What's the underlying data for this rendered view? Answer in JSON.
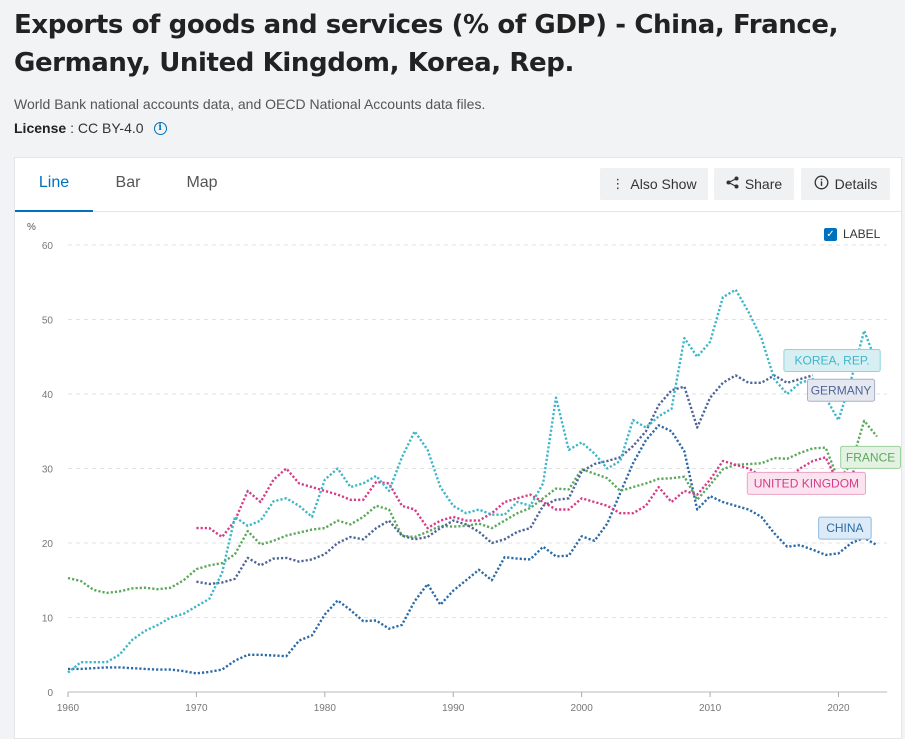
{
  "header": {
    "title": "Exports of goods and services (% of GDP) - China, France, Germany, United Kingdom, Korea, Rep.",
    "source": "World Bank national accounts data, and OECD National Accounts data files.",
    "license_label": "License",
    "license_value": ": CC BY-4.0"
  },
  "tabs": [
    {
      "label": "Line",
      "active": true
    },
    {
      "label": "Bar",
      "active": false
    },
    {
      "label": "Map",
      "active": false
    }
  ],
  "actions": {
    "also_show": "Also Show",
    "share": "Share",
    "details": "Details"
  },
  "label_toggle": {
    "label": "LABEL",
    "checked": true
  },
  "chart_data": {
    "type": "line",
    "y_unit": "%",
    "xlim": [
      1960,
      2023
    ],
    "ylim": [
      0,
      60
    ],
    "x_ticks": [
      1960,
      1970,
      1980,
      1990,
      2000,
      2010,
      2020
    ],
    "y_ticks": [
      0,
      10,
      20,
      30,
      40,
      50,
      60
    ],
    "grid": true,
    "series": [
      {
        "name": "CHINA",
        "color": "#2c6ba6",
        "label_bg": "#dcebf7",
        "label_border": "#8cbbe0",
        "x": [
          1960,
          1961,
          1962,
          1963,
          1964,
          1965,
          1966,
          1967,
          1968,
          1969,
          1970,
          1971,
          1972,
          1973,
          1974,
          1975,
          1976,
          1977,
          1978,
          1979,
          1980,
          1981,
          1982,
          1983,
          1984,
          1985,
          1986,
          1987,
          1988,
          1989,
          1990,
          1991,
          1992,
          1993,
          1994,
          1995,
          1996,
          1997,
          1998,
          1999,
          2000,
          2001,
          2002,
          2003,
          2004,
          2005,
          2006,
          2007,
          2008,
          2009,
          2010,
          2011,
          2012,
          2013,
          2014,
          2015,
          2016,
          2017,
          2018,
          2019,
          2020,
          2021,
          2022,
          2023
        ],
        "y": [
          3.1,
          3.1,
          3.2,
          3.3,
          3.3,
          3.2,
          3.1,
          3.0,
          3.0,
          2.8,
          2.5,
          2.7,
          3.0,
          4.2,
          5.0,
          5.0,
          4.9,
          4.8,
          6.9,
          7.6,
          10.4,
          12.3,
          11.0,
          9.5,
          9.6,
          8.5,
          9.0,
          12.2,
          14.5,
          11.7,
          13.6,
          15.0,
          16.4,
          15.0,
          18.1,
          17.9,
          17.8,
          19.5,
          18.2,
          18.3,
          20.9,
          20.3,
          22.6,
          26.7,
          30.7,
          33.8,
          35.8,
          35.0,
          32.3,
          24.5,
          26.3,
          25.5,
          25.0,
          24.5,
          23.5,
          21.3,
          19.5,
          19.7,
          19.1,
          18.4,
          18.6,
          20.0,
          20.7,
          19.7
        ],
        "label_x": 2020.5,
        "label_y": 22.0
      },
      {
        "name": "FRANCE",
        "color": "#5ca85c",
        "label_bg": "#e4f2e4",
        "label_border": "#9ccf9c",
        "x": [
          1960,
          1961,
          1962,
          1963,
          1964,
          1965,
          1966,
          1967,
          1968,
          1969,
          1970,
          1971,
          1972,
          1973,
          1974,
          1975,
          1976,
          1977,
          1978,
          1979,
          1980,
          1981,
          1982,
          1983,
          1984,
          1985,
          1986,
          1987,
          1988,
          1989,
          1990,
          1991,
          1992,
          1993,
          1994,
          1995,
          1996,
          1997,
          1998,
          1999,
          2000,
          2001,
          2002,
          2003,
          2004,
          2005,
          2006,
          2007,
          2008,
          2009,
          2010,
          2011,
          2012,
          2013,
          2014,
          2015,
          2016,
          2017,
          2018,
          2019,
          2020,
          2021,
          2022,
          2023
        ],
        "y": [
          15.3,
          14.9,
          13.7,
          13.3,
          13.5,
          13.9,
          14.0,
          13.8,
          14.0,
          15.0,
          16.5,
          17.0,
          17.3,
          18.5,
          21.6,
          19.8,
          20.3,
          21.0,
          21.4,
          21.8,
          22.0,
          23.0,
          22.5,
          23.5,
          25.0,
          24.5,
          21.0,
          20.8,
          21.5,
          22.3,
          22.2,
          22.3,
          22.6,
          22.0,
          23.0,
          24.0,
          24.7,
          26.0,
          27.3,
          27.2,
          29.9,
          29.3,
          28.7,
          27.0,
          27.5,
          28.0,
          28.6,
          28.7,
          28.9,
          25.8,
          27.8,
          29.9,
          30.5,
          30.6,
          30.7,
          31.4,
          31.3,
          32.1,
          32.7,
          32.8,
          28.5,
          30.6,
          36.4,
          34.3
        ],
        "label_x": 2022.5,
        "label_y": 31.5
      },
      {
        "name": "GERMANY",
        "color": "#4e6596",
        "label_bg": "#e6e8f0",
        "label_border": "#a8b0cc",
        "x": [
          1970,
          1971,
          1972,
          1973,
          1974,
          1975,
          1976,
          1977,
          1978,
          1979,
          1980,
          1981,
          1982,
          1983,
          1984,
          1985,
          1986,
          1987,
          1988,
          1989,
          1990,
          1991,
          1992,
          1993,
          1994,
          1995,
          1996,
          1997,
          1998,
          1999,
          2000,
          2001,
          2002,
          2003,
          2004,
          2005,
          2006,
          2007,
          2008,
          2009,
          2010,
          2011,
          2012,
          2013,
          2014,
          2015,
          2016,
          2017,
          2018
        ],
        "y": [
          14.8,
          14.5,
          14.7,
          15.2,
          18.0,
          17.0,
          17.9,
          18.0,
          17.5,
          17.8,
          18.5,
          20.0,
          20.8,
          20.5,
          22.0,
          23.0,
          21.0,
          20.5,
          20.8,
          22.0,
          23.0,
          22.5,
          21.5,
          20.0,
          20.5,
          21.5,
          22.0,
          25.0,
          25.8,
          26.0,
          29.6,
          30.6,
          31.0,
          31.5,
          33.0,
          35.0,
          38.5,
          40.5,
          41.0,
          35.5,
          39.5,
          41.5,
          42.5,
          41.5,
          41.5,
          42.5,
          41.5,
          42.0,
          42.5
        ],
        "label_x": 2020.2,
        "label_y": 40.5
      },
      {
        "name": "UNITED KINGDOM",
        "color": "#d43d8a",
        "label_bg": "#fbe3ef",
        "label_border": "#eaa3c6",
        "x": [
          1970,
          1971,
          1972,
          1973,
          1974,
          1975,
          1976,
          1977,
          1978,
          1979,
          1980,
          1981,
          1982,
          1983,
          1984,
          1985,
          1986,
          1987,
          1988,
          1989,
          1990,
          1991,
          1992,
          1993,
          1994,
          1995,
          1996,
          1997,
          1998,
          1999,
          2000,
          2001,
          2002,
          2003,
          2004,
          2005,
          2006,
          2007,
          2008,
          2009,
          2010,
          2011,
          2012,
          2013,
          2014,
          2015,
          2016,
          2017,
          2018,
          2019,
          2020,
          2021,
          2022,
          2023
        ],
        "y": [
          22.0,
          22.0,
          20.8,
          23.0,
          27.0,
          25.5,
          28.5,
          30.0,
          28.0,
          27.5,
          27.0,
          26.5,
          25.8,
          25.8,
          28.2,
          28.0,
          25.0,
          24.5,
          22.0,
          23.0,
          23.5,
          23.0,
          23.0,
          24.0,
          25.5,
          26.0,
          26.5,
          25.5,
          24.5,
          24.5,
          26.0,
          25.5,
          25.0,
          24.0,
          24.0,
          25.0,
          27.5,
          25.5,
          27.0,
          26.5,
          28.5,
          31.0,
          30.5,
          30.0,
          29.0,
          28.0,
          28.5,
          30.0,
          31.0,
          31.5,
          28.0,
          29.0,
          32.5,
          32.0
        ],
        "label_x": 2017.5,
        "label_y": 28.0
      },
      {
        "name": "KOREA, REP.",
        "color": "#3fb6c9",
        "label_bg": "#d7eff3",
        "label_border": "#8fd3de",
        "x": [
          1960,
          1961,
          1962,
          1963,
          1964,
          1965,
          1966,
          1967,
          1968,
          1969,
          1970,
          1971,
          1972,
          1973,
          1974,
          1975,
          1976,
          1977,
          1978,
          1979,
          1980,
          1981,
          1982,
          1983,
          1984,
          1985,
          1986,
          1987,
          1988,
          1989,
          1990,
          1991,
          1992,
          1993,
          1994,
          1995,
          1996,
          1997,
          1998,
          1999,
          2000,
          2001,
          2002,
          2003,
          2004,
          2005,
          2006,
          2007,
          2008,
          2009,
          2010,
          2011,
          2012,
          2013,
          2014,
          2015,
          2016,
          2017,
          2018,
          2019,
          2020,
          2021,
          2022,
          2023
        ],
        "y": [
          2.6,
          4.0,
          4.0,
          4.0,
          5.0,
          7.0,
          8.2,
          9.0,
          10.0,
          10.5,
          11.5,
          12.5,
          16.0,
          23.5,
          22.3,
          23.0,
          25.6,
          26.0,
          25.0,
          23.5,
          28.5,
          30.0,
          27.5,
          28.0,
          29.0,
          27.0,
          31.5,
          35.0,
          32.5,
          27.5,
          25.0,
          24.0,
          24.5,
          23.8,
          23.8,
          25.5,
          25.0,
          28.0,
          39.5,
          32.5,
          33.5,
          32.0,
          30.0,
          31.0,
          36.5,
          35.5,
          37.0,
          38.0,
          47.5,
          45.0,
          47.0,
          53.0,
          54.0,
          51.0,
          47.5,
          42.0,
          40.0,
          41.5,
          42.0,
          39.5,
          36.5,
          42.0,
          48.5,
          44.0
        ],
        "label_x": 2019.5,
        "label_y": 44.5
      }
    ]
  }
}
